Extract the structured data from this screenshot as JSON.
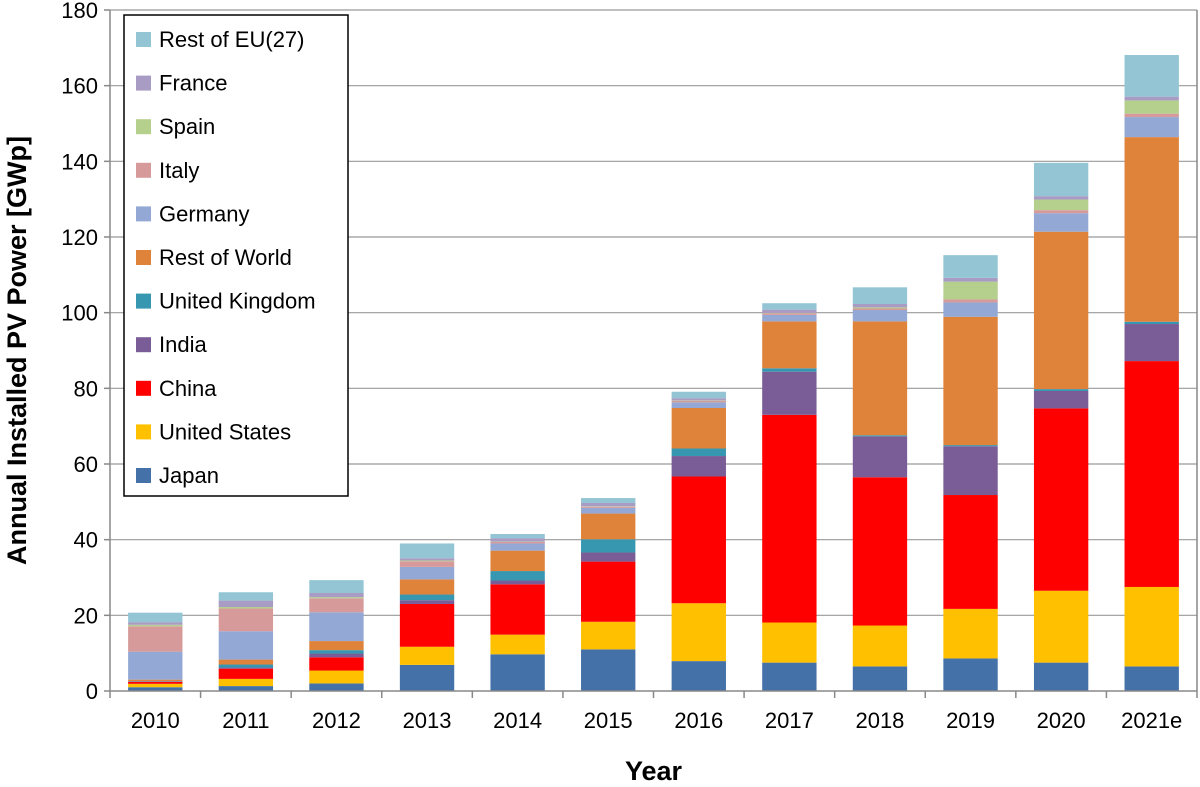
{
  "chart_data": {
    "type": "bar",
    "stacked": true,
    "xlabel": "Year",
    "ylabel": "Annual Installed PV Power [GWp]",
    "ylim": [
      0,
      180
    ],
    "yticks": [
      0,
      20,
      40,
      60,
      80,
      100,
      120,
      140,
      160,
      180
    ],
    "grid": true,
    "legend_position": "top-left",
    "categories": [
      "2010",
      "2011",
      "2012",
      "2013",
      "2014",
      "2015",
      "2016",
      "2017",
      "2018",
      "2019",
      "2020",
      "2021e"
    ],
    "series": [
      {
        "name": "Japan",
        "color": "#4472a8",
        "values": [
          1.0,
          1.3,
          2.0,
          6.9,
          9.7,
          11.0,
          7.9,
          7.5,
          6.5,
          8.6,
          7.5,
          6.5
        ]
      },
      {
        "name": "United States",
        "color": "#ffc000",
        "values": [
          0.9,
          1.9,
          3.4,
          4.8,
          5.2,
          7.3,
          15.3,
          10.6,
          10.8,
          13.1,
          19.0,
          21.0
        ]
      },
      {
        "name": "China",
        "color": "#ff0000",
        "values": [
          0.5,
          2.7,
          3.5,
          11.3,
          13.3,
          15.9,
          33.5,
          54.9,
          39.2,
          30.1,
          48.2,
          59.7
        ]
      },
      {
        "name": "India",
        "color": "#7a5c96",
        "values": [
          0.1,
          0.3,
          1.0,
          1.0,
          1.0,
          2.4,
          5.4,
          11.4,
          10.8,
          12.9,
          4.6,
          9.8
        ]
      },
      {
        "name": "United Kingdom",
        "color": "#3796b0",
        "values": [
          0.1,
          0.8,
          0.9,
          1.5,
          2.5,
          3.5,
          2.0,
          0.9,
          0.3,
          0.3,
          0.5,
          0.6
        ]
      },
      {
        "name": "Rest of World",
        "color": "#e0833a",
        "values": [
          0.4,
          1.3,
          2.4,
          4.0,
          5.4,
          6.8,
          10.7,
          12.4,
          30.1,
          33.9,
          41.6,
          48.8
        ]
      },
      {
        "name": "Germany",
        "color": "#93a8d4",
        "values": [
          7.4,
          7.5,
          7.6,
          3.3,
          1.9,
          1.5,
          1.5,
          1.7,
          3.0,
          3.8,
          4.9,
          5.3
        ]
      },
      {
        "name": "Italy",
        "color": "#d69a9a",
        "values": [
          6.7,
          6.0,
          3.7,
          1.5,
          0.4,
          0.3,
          0.4,
          0.4,
          0.4,
          0.8,
          0.8,
          0.9
        ]
      },
      {
        "name": "Spain",
        "color": "#b5cf8c",
        "values": [
          0.4,
          0.4,
          0.3,
          0.2,
          0.1,
          0.1,
          0.1,
          0.1,
          0.3,
          4.7,
          2.8,
          3.5
        ]
      },
      {
        "name": "France",
        "color": "#a99cc4",
        "values": [
          0.7,
          1.7,
          1.1,
          0.6,
          0.9,
          0.9,
          0.6,
          0.9,
          0.9,
          1.0,
          0.9,
          1.0
        ]
      },
      {
        "name": "Rest of EU(27)",
        "color": "#93c5d5",
        "values": [
          2.5,
          2.2,
          3.4,
          3.9,
          1.1,
          1.3,
          1.7,
          1.7,
          4.4,
          6.0,
          8.8,
          11.0
        ]
      }
    ]
  }
}
